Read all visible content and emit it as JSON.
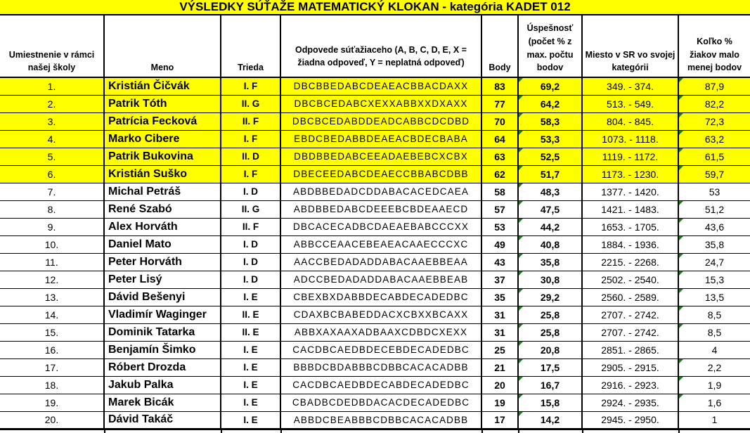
{
  "title": "VÝSLEDKY SÚŤAŽE MATEMATICKÝ KLOKAN - kategória KADET 012",
  "colors": {
    "highlight": "#FFFF00",
    "error_triangle": "#1E7B1E",
    "border": "#000000"
  },
  "table": {
    "columns": [
      {
        "id": "rank",
        "label": "Umiestnenie v rámci našej školy"
      },
      {
        "id": "name",
        "label": "Meno"
      },
      {
        "id": "class",
        "label": "Trieda"
      },
      {
        "id": "answers",
        "label": "Odpovede súťažiaceho (A, B, C, D, E, X = žiadna odpoveď, Y = neplatná odpoveď)"
      },
      {
        "id": "points",
        "label": "Body"
      },
      {
        "id": "success",
        "label": "Úspešnosť (počet % z max. počtu bodov"
      },
      {
        "id": "place_sr",
        "label": "Miesto v SR vo svojej kategórii"
      },
      {
        "id": "pct_fewer",
        "label": "Koľko % žiakov malo menej bodov"
      }
    ],
    "rows": [
      {
        "rank": "1.",
        "name": "Kristián Čičvák",
        "class": "I. F",
        "answers": "DBCBBEDABCDEAEACBBACDAXX",
        "points": "83",
        "success": "69,2",
        "place_sr": "349. - 374.",
        "pct_fewer": "87,9",
        "highlighted": true,
        "success_flag": true,
        "pct_flag": true
      },
      {
        "rank": "2.",
        "name": "Patrik Tóth",
        "class": "II. G",
        "answers": "DBCBCEDABCXEXXABBXXDXAXX",
        "points": "77",
        "success": "64,2",
        "place_sr": "513. - 549.",
        "pct_fewer": "82,2",
        "highlighted": true,
        "success_flag": true,
        "pct_flag": true
      },
      {
        "rank": "3.",
        "name": "Patrícia Fecková",
        "class": "II. F",
        "answers": "DBCBCEDABDDEADCABBCDCDBD",
        "points": "70",
        "success": "58,3",
        "place_sr": "804. - 845.",
        "pct_fewer": "72,3",
        "highlighted": true,
        "success_flag": true,
        "pct_flag": true
      },
      {
        "rank": "4.",
        "name": "Marko Cibere",
        "class": "I. F",
        "answers": "EBDCBEDABBDEAEACBDECBABA",
        "points": "64",
        "success": "53,3",
        "place_sr": "1073. - 1118.",
        "pct_fewer": "63,2",
        "highlighted": true,
        "success_flag": true,
        "pct_flag": true
      },
      {
        "rank": "5.",
        "name": "Patrik Bukovina",
        "class": "II. D",
        "answers": "DBDBBEDABCEEADAEBEBCXCBX",
        "points": "63",
        "success": "52,5",
        "place_sr": "1119. - 1172.",
        "pct_fewer": "61,5",
        "highlighted": true,
        "success_flag": true,
        "pct_flag": true
      },
      {
        "rank": "6.",
        "name": "Kristián Suško",
        "class": "I. F",
        "answers": "DBECEEDABCDEAECCBBABCDBB",
        "points": "62",
        "success": "51,7",
        "place_sr": "1173. - 1230.",
        "pct_fewer": "59,7",
        "highlighted": true,
        "success_flag": true,
        "pct_flag": true
      },
      {
        "rank": "7.",
        "name": "Michal Petráš",
        "class": "I. D",
        "answers": "ABDBBEDADCDDABACACEDCAEA",
        "points": "58",
        "success": "48,3",
        "place_sr": "1377. - 1420.",
        "pct_fewer": "53",
        "highlighted": false,
        "success_flag": true,
        "pct_flag": false
      },
      {
        "rank": "8.",
        "name": "René Szabó",
        "class": "II. G",
        "answers": "ABDBBEDABCDEEEBCBDEAAECD",
        "points": "57",
        "success": "47,5",
        "place_sr": "1421. - 1483.",
        "pct_fewer": "51,2",
        "highlighted": false,
        "success_flag": true,
        "pct_flag": true
      },
      {
        "rank": "9.",
        "name": "Alex Horváth",
        "class": "II. F",
        "answers": "DBCACECADBCDAEAEBABCCCXX",
        "points": "53",
        "success": "44,2",
        "place_sr": "1653. - 1705.",
        "pct_fewer": "43,6",
        "highlighted": false,
        "success_flag": true,
        "pct_flag": true
      },
      {
        "rank": "10.",
        "name": "Daniel Mato",
        "class": "I. D",
        "answers": "ABBCCEAACEBEAEACAAECCCXC",
        "points": "49",
        "success": "40,8",
        "place_sr": "1884. - 1936.",
        "pct_fewer": "35,8",
        "highlighted": false,
        "success_flag": true,
        "pct_flag": true
      },
      {
        "rank": "11.",
        "name": "Peter Horváth",
        "class": "I. D",
        "answers": "AACCBEDADADDABACAAEBBEAA",
        "points": "43",
        "success": "35,8",
        "place_sr": "2215. - 2268.",
        "pct_fewer": "24,7",
        "highlighted": false,
        "success_flag": true,
        "pct_flag": true
      },
      {
        "rank": "12.",
        "name": "Peter Lisý",
        "class": "I. D",
        "answers": "ADCCBEDADADDABACAAEBBEAB",
        "points": "37",
        "success": "30,8",
        "place_sr": "2502. - 2540.",
        "pct_fewer": "15,3",
        "highlighted": false,
        "success_flag": true,
        "pct_flag": true
      },
      {
        "rank": "13.",
        "name": "Dávid Bešenyi",
        "class": "I. E",
        "answers": "CBEXBXDABBDECABDECADEDBC",
        "points": "35",
        "success": "29,2",
        "place_sr": "2560. - 2589.",
        "pct_fewer": "13,5",
        "highlighted": false,
        "success_flag": true,
        "pct_flag": true
      },
      {
        "rank": "14.",
        "name": "Vladimír Waginger",
        "class": "II. E",
        "answers": "CDAXBCBABEDDACXCBXXBCAXX",
        "points": "31",
        "success": "25,8",
        "place_sr": "2707. - 2742.",
        "pct_fewer": "8,5",
        "highlighted": false,
        "success_flag": true,
        "pct_flag": true
      },
      {
        "rank": "15.",
        "name": "Dominik Tatarka",
        "class": "II. E",
        "answers": "ABBXAXAAXADBAAXCDBDCXEXX",
        "points": "31",
        "success": "25,8",
        "place_sr": "2707. - 2742.",
        "pct_fewer": "8,5",
        "highlighted": false,
        "success_flag": true,
        "pct_flag": true
      },
      {
        "rank": "16.",
        "name": "Benjamín Šimko",
        "class": "I. E",
        "answers": "CACDBCAEDBDECEBDECADEDBC",
        "points": "25",
        "success": "20,8",
        "place_sr": "2851. - 2865.",
        "pct_fewer": "4",
        "highlighted": false,
        "success_flag": true,
        "pct_flag": false
      },
      {
        "rank": "17.",
        "name": "Róbert Drozda",
        "class": "I. E",
        "answers": "BBBDCBDABBBCDBBCACACADBB",
        "points": "21",
        "success": "17,5",
        "place_sr": "2905. - 2915.",
        "pct_fewer": "2,2",
        "highlighted": false,
        "success_flag": true,
        "pct_flag": true
      },
      {
        "rank": "18.",
        "name": "Jakub Palka",
        "class": "I. E",
        "answers": "CACDBCAEDBDECABDECADEDBC",
        "points": "20",
        "success": "16,7",
        "place_sr": "2916. - 2923.",
        "pct_fewer": "1,9",
        "highlighted": false,
        "success_flag": true,
        "pct_flag": true
      },
      {
        "rank": "19.",
        "name": "Marek Bicák",
        "class": "I. E",
        "answers": "CBADBCDEDBDACACDECADEDBC",
        "points": "19",
        "success": "15,8",
        "place_sr": "2924. - 2935.",
        "pct_fewer": "1,6",
        "highlighted": false,
        "success_flag": true,
        "pct_flag": true
      },
      {
        "rank": "20.",
        "name": "Dávid Takáč",
        "class": "I. E",
        "answers": "ABBDCBEABBBCDBBCACACADBB",
        "points": "17",
        "success": "14,2",
        "place_sr": "2945. - 2950.",
        "pct_fewer": "1",
        "highlighted": false,
        "success_flag": true,
        "pct_flag": false
      }
    ]
  }
}
